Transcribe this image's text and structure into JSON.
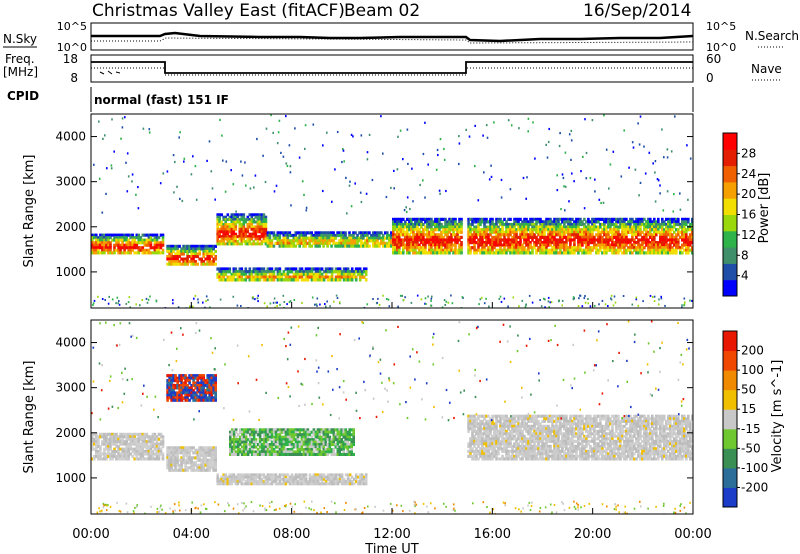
{
  "header": {
    "station": "Christmas Valley East (fitACF)",
    "beam": "Beam 02",
    "date": "16/Sep/2014"
  },
  "top_panels": {
    "nsky_label": "N.Sky",
    "nsky_ticks": [
      "10^5",
      "10^0"
    ],
    "nsearch_label": "N.Search",
    "freq_label": "Freq.",
    "freq_unit": "[MHz]",
    "freq_ticks": [
      "18",
      "8"
    ],
    "nave_ticks": [
      "60",
      "0"
    ],
    "nave_label": "Nave",
    "cpid_label": "CPID",
    "cpid_text": "normal (fast) 151 IF"
  },
  "chart_data": [
    {
      "type": "heatmap",
      "ylabel": "Slant Range [km]",
      "yticks": [
        "4000",
        "3000",
        "2000",
        "1000"
      ],
      "ylim": [
        200,
        4500
      ],
      "x_range_hours": [
        0,
        24
      ],
      "colorbar_label": "Power [dB]",
      "colorbar_ticks": [
        "28",
        "24",
        "20",
        "16",
        "12",
        "8",
        "4"
      ],
      "colorbar_colors": [
        "#0000ff",
        "#1f4ea8",
        "#3f8f6a",
        "#2eb24a",
        "#9ad80c",
        "#f2de00",
        "#f5a000",
        "#f06000",
        "#e41e00",
        "#ff0000"
      ],
      "echo_bands_power": [
        {
          "t0": 0.0,
          "t1": 2.9,
          "r0": 1400,
          "r1": 1850,
          "level": "high"
        },
        {
          "t0": 3.0,
          "t1": 5.0,
          "r0": 1150,
          "r1": 1600,
          "level": "high"
        },
        {
          "t0": 5.0,
          "t1": 7.0,
          "r0": 1600,
          "r1": 2300,
          "level": "high"
        },
        {
          "t0": 7.0,
          "t1": 12.0,
          "r0": 1550,
          "r1": 1900,
          "level": "medium"
        },
        {
          "t0": 5.0,
          "t1": 11.0,
          "r0": 800,
          "r1": 1100,
          "level": "medium"
        },
        {
          "t0": 12.0,
          "t1": 14.8,
          "r0": 1400,
          "r1": 2200,
          "level": "high"
        },
        {
          "t0": 15.0,
          "t1": 24.0,
          "r0": 1400,
          "r1": 2200,
          "level": "high"
        }
      ]
    },
    {
      "type": "heatmap",
      "ylabel": "Slant Range [km]",
      "yticks": [
        "4000",
        "3000",
        "2000",
        "1000"
      ],
      "ylim": [
        200,
        4500
      ],
      "x_range_hours": [
        0,
        24
      ],
      "xticks": [
        "00:00",
        "04:00",
        "08:00",
        "12:00",
        "16:00",
        "20:00",
        "00:00"
      ],
      "xlabel": "Time UT",
      "colorbar_label": "Velocity [m s^-1]",
      "colorbar_ticks": [
        "200",
        "100",
        "50",
        "15",
        "-15",
        "-50",
        "-100",
        "-200"
      ],
      "colorbar_colors": [
        "#1c3dc8",
        "#2c6e9a",
        "#3a8f54",
        "#70c830",
        "#c8c8c8",
        "#f0c000",
        "#f08a00",
        "#f04800",
        "#e81800"
      ],
      "echo_bands_velocity": [
        {
          "t0": 0.0,
          "t1": 2.9,
          "r0": 1400,
          "r1": 2000,
          "level": "ground"
        },
        {
          "t0": 3.0,
          "t1": 5.0,
          "r0": 1150,
          "r1": 1700,
          "level": "ground"
        },
        {
          "t0": 5.5,
          "t1": 10.5,
          "r0": 1500,
          "r1": 2100,
          "level": "green"
        },
        {
          "t0": 5.0,
          "t1": 11.0,
          "r0": 850,
          "r1": 1100,
          "level": "ground"
        },
        {
          "t0": 15.0,
          "t1": 24.0,
          "r0": 1400,
          "r1": 2400,
          "level": "ground"
        },
        {
          "t0": 3.0,
          "t1": 5.0,
          "r0": 2700,
          "r1": 3300,
          "level": "blue"
        }
      ]
    }
  ]
}
